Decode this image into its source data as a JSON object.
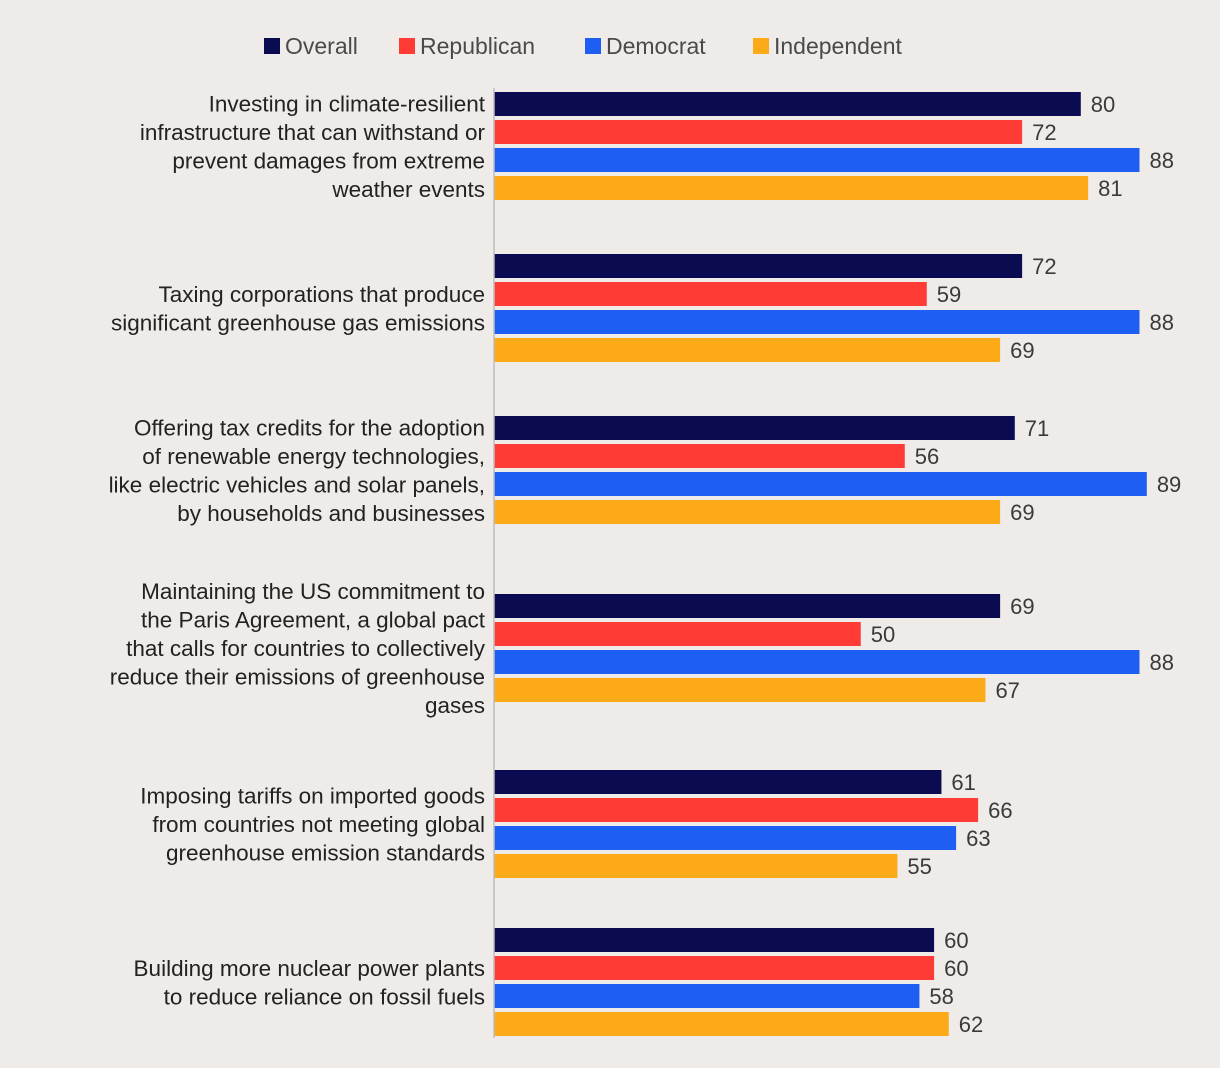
{
  "chart_data": {
    "type": "bar",
    "orientation": "horizontal",
    "legend_position": "top",
    "grid": false,
    "xlim": [
      0,
      100
    ],
    "series": [
      {
        "name": "Overall",
        "color": "#0b0b52",
        "values": [
          80,
          72,
          71,
          69,
          61,
          60
        ]
      },
      {
        "name": "Republican",
        "color": "#ff3b36",
        "values": [
          72,
          59,
          56,
          50,
          66,
          60
        ]
      },
      {
        "name": "Democrat",
        "color": "#1f5ef2",
        "values": [
          88,
          88,
          89,
          88,
          63,
          58
        ]
      },
      {
        "name": "Independent",
        "color": "#fdaa19",
        "values": [
          81,
          69,
          69,
          67,
          55,
          62
        ]
      }
    ],
    "categories": [
      {
        "lines": [
          "Investing in climate-resilient",
          "infrastructure that can withstand or",
          "prevent damages from extreme",
          "weather events"
        ]
      },
      {
        "lines": [
          "Taxing corporations that produce",
          "significant greenhouse gas emissions"
        ]
      },
      {
        "lines": [
          "Offering tax credits for the adoption",
          "of renewable energy technologies,",
          "like electric vehicles and solar panels,",
          "by households and businesses"
        ]
      },
      {
        "lines": [
          "Maintaining the US commitment to",
          "the Paris Agreement, a global pact",
          "that calls for countries to collectively",
          "reduce their emissions of greenhouse",
          "gases"
        ]
      },
      {
        "lines": [
          "Imposing tariffs on imported goods",
          "from countries not meeting global",
          "greenhouse emission standards"
        ]
      },
      {
        "lines": [
          "Building more nuclear power plants",
          "to reduce reliance on fossil fuels"
        ]
      }
    ]
  }
}
